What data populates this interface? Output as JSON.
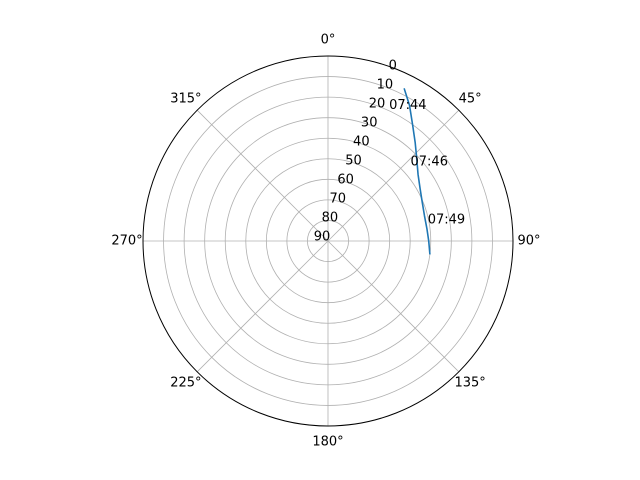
{
  "chart_data": {
    "type": "line",
    "projection": "polar",
    "theta_zero_location": "N",
    "theta_direction": "clockwise",
    "r_axis": "elevation",
    "r_inverted": true,
    "rlim": [
      90,
      0
    ],
    "r_ticks": [
      0,
      10,
      20,
      30,
      40,
      50,
      60,
      70,
      80,
      90
    ],
    "r_tick_labels": [
      "0",
      "10",
      "20",
      "30",
      "40",
      "50",
      "60",
      "70",
      "80",
      "90"
    ],
    "theta_ticks": [
      0,
      45,
      90,
      135,
      180,
      225,
      270,
      315
    ],
    "theta_tick_labels": [
      "0°",
      "45°",
      "90°",
      "135°",
      "180°",
      "225°",
      "270°",
      "315°"
    ],
    "grid": true,
    "series": [
      {
        "color": "#1f77b4",
        "points": [
          {
            "azimuth": 26.5,
            "elevation": 7
          },
          {
            "azimuth": 31,
            "elevation": 13
          },
          {
            "azimuth": 36,
            "elevation": 20
          },
          {
            "azimuth": 41.5,
            "elevation": 26
          },
          {
            "azimuth": 47,
            "elevation": 31
          },
          {
            "azimuth": 53.5,
            "elevation": 35.5
          },
          {
            "azimuth": 60.5,
            "elevation": 38.5
          },
          {
            "azimuth": 68,
            "elevation": 40.5
          },
          {
            "azimuth": 75.5,
            "elevation": 41.5
          },
          {
            "azimuth": 83,
            "elevation": 41.5
          },
          {
            "azimuth": 90,
            "elevation": 41
          },
          {
            "azimuth": 97.5,
            "elevation": 40
          }
        ]
      }
    ],
    "annotations": [
      {
        "text": "07:44",
        "azimuth": 30.5,
        "elevation": 13.5
      },
      {
        "text": "07:46",
        "azimuth": 52,
        "elevation": 27.5
      },
      {
        "text": "07:49",
        "azimuth": 80,
        "elevation": 31.5
      }
    ]
  }
}
